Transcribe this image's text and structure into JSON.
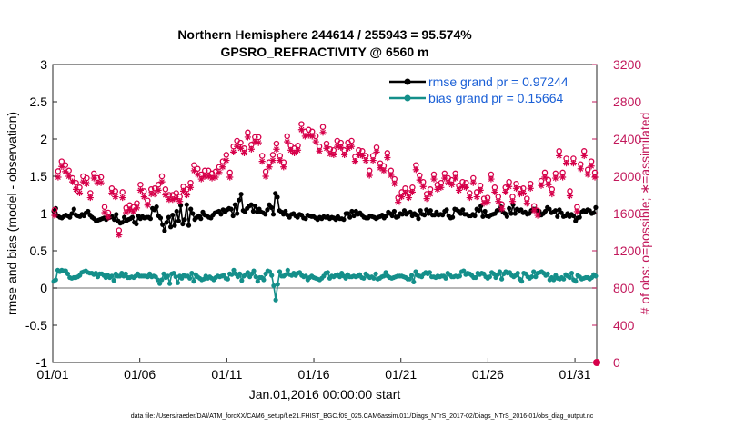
{
  "chart_data": {
    "type": "line",
    "title": "Northern Hemisphere 244614 / 255943 = 95.574%",
    "subtitle": "GPSRO_REFRACTIVITY @ 6560 m",
    "xlabel": "Jan.01,2016 00:00:00 start",
    "ylabel": "rmse and bias (model - observation)",
    "ylabel_right": "# of obs: o=possible; ∗=assimilated",
    "footer": "data file: /Users/raeder/DAI/ATM_forcXX/CAM6_setup/f.e21.FHIST_BGC.f09_025.CAM6assim.011/Diags_NTrS_2017-02/Diags_NTrS_2016-01/obs_diag_output.nc",
    "x_range": [
      0,
      31.25
    ],
    "x_ticks": [
      {
        "pos": 0,
        "label": "01/01"
      },
      {
        "pos": 5,
        "label": "01/06"
      },
      {
        "pos": 10,
        "label": "01/11"
      },
      {
        "pos": 15,
        "label": "01/16"
      },
      {
        "pos": 20,
        "label": "01/21"
      },
      {
        "pos": 25,
        "label": "01/26"
      },
      {
        "pos": 30,
        "label": "01/31"
      }
    ],
    "ylim": [
      -1,
      3
    ],
    "y_ticks": [
      "-1",
      "-0.5",
      "0",
      "0.5",
      "1",
      "1.5",
      "2",
      "2.5",
      "3"
    ],
    "ylim_right": [
      0,
      3200
    ],
    "y_ticks_right": [
      "0",
      "400",
      "800",
      "1200",
      "1600",
      "2000",
      "2400",
      "2800",
      "3200"
    ],
    "series": [
      {
        "name": "rmse grand pr = 0.97244",
        "axis": "left",
        "color": "#000000",
        "marker": "dot",
        "values": [
          1.03,
          1.07,
          0.97,
          0.95,
          0.94,
          0.96,
          0.98,
          0.97,
          0.95,
          1.0,
          1.06,
          0.98,
          0.97,
          0.96,
          0.99,
          0.97,
          1.01,
          1.03,
          0.98,
          0.95,
          0.93,
          0.9,
          0.91,
          0.92,
          0.93,
          0.94,
          0.92,
          0.94,
          0.95,
          0.96,
          0.92,
          0.99,
          0.9,
          0.87,
          0.88,
          0.95,
          0.9,
          0.92,
          0.93,
          0.95,
          0.88,
          0.86,
          0.97,
          0.93,
          0.96,
          0.94,
          0.95,
          0.95,
          0.93,
          1.07,
          1.05,
          1.09,
          0.97,
          0.94,
          0.85,
          0.77,
          0.88,
          0.95,
          0.82,
          0.98,
          0.84,
          1.03,
          0.9,
          1.11,
          0.86,
          0.92,
          1.12,
          0.84,
          1.06,
          1.0,
          0.92,
          0.95,
          0.97,
          0.93,
          1.02,
          0.98,
          0.97,
          0.95,
          0.94,
          0.98,
          1.01,
          1.02,
          1.03,
          0.99,
          1.05,
          1.02,
          1.05,
          1.07,
          1.06,
          0.97,
          1.12,
          1.0,
          1.18,
          1.26,
          1.04,
          1.02,
          1.07,
          1.1,
          1.12,
          1.03,
          1.1,
          1.02,
          1.06,
          1.02,
          1.01,
          0.99,
          1.05,
          1.12,
          1.08,
          0.99,
          1.27,
          1.22,
          1.04,
          1.02,
          0.99,
          1.03,
          0.98,
          0.95,
          0.99,
          1.0,
          0.97,
          0.95,
          0.99,
          0.98,
          0.94,
          0.93,
          0.98,
          0.97,
          0.96,
          0.96,
          0.94,
          0.92,
          0.95,
          0.93,
          0.96,
          0.95,
          0.96,
          0.93,
          0.95,
          0.94,
          0.92,
          0.96,
          0.93,
          0.93,
          0.92,
          1.0,
          1.0,
          0.95,
          1.03,
          0.97,
          1.03,
          0.99,
          1.01,
          0.98,
          0.95,
          0.94,
          0.94,
          0.97,
          0.96,
          0.95,
          0.93,
          0.95,
          0.96,
          0.98,
          0.94,
          0.97,
          1.02,
          1.0,
          0.97,
          1.03,
          0.95,
          0.96,
          1.0,
          0.99,
          1.04,
          0.99,
          1.01,
          1.02,
          0.97,
          1.0,
          0.98,
          0.93,
          1.04,
          0.99,
          0.98,
          1.05,
          1.0,
          1.04,
          0.98,
          0.98,
          1.02,
          0.98,
          0.99,
          0.98,
          1.03,
          1.05,
          0.97,
          0.94,
          0.95,
          1.06,
          1.05,
          1.03,
          1.0,
          1.05,
          0.99,
          0.99,
          0.97,
          0.97,
          0.99,
          0.97,
          1.06,
          1.04,
          1.1,
          0.96,
          1.03,
          0.97,
          0.96,
          0.98,
          0.99,
          1.0,
          1.04,
          1.05,
          1.09,
          1.02,
          1.0,
          0.96,
          1.07,
          1.0,
          1.12,
          1.0,
          1.06,
          1.04,
          1.05,
          1.01,
          1.02,
          0.99,
          1.0,
          1.04,
          1.06,
          1.06,
          1.04,
          1.03,
          0.98,
          1.0,
          1.03,
          1.08,
          1.06,
          1.01,
          1.02,
          1.04,
          0.96,
          1.05,
          1.01,
          0.96,
          0.97,
          1.0,
          0.96,
          0.99,
          0.97,
          0.9,
          0.94,
          0.95,
          1.02,
          1.04,
          1.02,
          1.05,
          1.04,
          1.0,
          1.01,
          1.08
        ]
      },
      {
        "name": "bias grand pr = 0.15664",
        "axis": "left",
        "color": "#148f8a",
        "marker": "dot",
        "values": [
          0.09,
          0.11,
          0.24,
          0.22,
          0.24,
          0.23,
          0.23,
          0.19,
          0.14,
          0.13,
          0.14,
          0.14,
          0.15,
          0.17,
          0.21,
          0.22,
          0.23,
          0.21,
          0.2,
          0.2,
          0.18,
          0.2,
          0.15,
          0.19,
          0.19,
          0.17,
          0.14,
          0.17,
          0.14,
          0.16,
          0.1,
          0.19,
          0.16,
          0.16,
          0.2,
          0.16,
          0.19,
          0.14,
          0.14,
          0.15,
          0.14,
          0.16,
          0.19,
          0.16,
          0.16,
          0.16,
          0.16,
          0.15,
          0.19,
          0.15,
          0.16,
          0.15,
          0.11,
          0.06,
          0.11,
          0.19,
          0.14,
          0.16,
          0.06,
          0.19,
          0.2,
          0.15,
          0.07,
          0.16,
          0.13,
          0.17,
          0.16,
          0.16,
          0.13,
          0.2,
          0.09,
          0.18,
          0.15,
          0.13,
          0.11,
          0.12,
          0.16,
          0.13,
          0.15,
          0.13,
          0.11,
          0.14,
          0.16,
          0.15,
          0.16,
          0.17,
          0.13,
          0.12,
          0.19,
          0.18,
          0.24,
          0.19,
          0.15,
          0.19,
          0.1,
          0.16,
          0.18,
          0.21,
          0.15,
          0.19,
          0.23,
          0.15,
          0.09,
          0.14,
          0.14,
          0.11,
          0.19,
          0.23,
          0.22,
          0.17,
          0.03,
          -0.16,
          0.05,
          0.22,
          0.16,
          0.16,
          0.18,
          0.24,
          0.18,
          0.17,
          0.2,
          0.17,
          0.2,
          0.21,
          0.17,
          0.15,
          0.16,
          0.11,
          0.14,
          0.16,
          0.14,
          0.13,
          0.12,
          0.11,
          0.13,
          0.16,
          0.2,
          0.21,
          0.13,
          0.16,
          0.15,
          0.17,
          0.18,
          0.15,
          0.2,
          0.16,
          0.13,
          0.18,
          0.15,
          0.15,
          0.16,
          0.15,
          0.16,
          0.18,
          0.14,
          0.13,
          0.19,
          0.16,
          0.14,
          0.15,
          0.13,
          0.19,
          0.12,
          0.13,
          0.15,
          0.16,
          0.21,
          0.16,
          0.14,
          0.13,
          0.14,
          0.15,
          0.16,
          0.16,
          0.16,
          0.15,
          0.14,
          0.12,
          0.12,
          0.17,
          0.08,
          0.22,
          0.17,
          0.16,
          0.15,
          0.19,
          0.21,
          0.19,
          0.21,
          0.15,
          0.15,
          0.14,
          0.16,
          0.15,
          0.16,
          0.16,
          0.13,
          0.2,
          0.18,
          0.15,
          0.15,
          0.16,
          0.15,
          0.16,
          0.22,
          0.23,
          0.18,
          0.2,
          0.19,
          0.17,
          0.14,
          0.14,
          0.2,
          0.18,
          0.2,
          0.19,
          0.15,
          0.13,
          0.15,
          0.21,
          0.19,
          0.14,
          0.18,
          0.22,
          0.12,
          0.19,
          0.22,
          0.2,
          0.21,
          0.17,
          0.15,
          0.17,
          0.2,
          0.12,
          0.09,
          0.2,
          0.19,
          0.15,
          0.13,
          0.15,
          0.22,
          0.15,
          0.2,
          0.21,
          0.22,
          0.2,
          0.17,
          0.19,
          0.11,
          0.14,
          0.11,
          0.17,
          0.13,
          0.12,
          0.14,
          0.12,
          0.18,
          0.16,
          0.14,
          0.2,
          0.11,
          0.09,
          0.17,
          0.15,
          0.12,
          0.13,
          0.14,
          0.14,
          0.12,
          0.14,
          0.18,
          0.16
        ]
      },
      {
        "name": "possible obs",
        "axis": "right",
        "color": "#d6004a",
        "marker": "o",
        "values": [
          1640,
          2055,
          2160,
          2120,
          2060,
          1980,
          1930,
          1880,
          2000,
          1980,
          1820,
          2030,
          1980,
          1990,
          1670,
          1610,
          1870,
          1840,
          1420,
          1830,
          1660,
          1690,
          1670,
          1710,
          1910,
          1840,
          1740,
          1860,
          1870,
          1910,
          2000,
          1860,
          1800,
          1800,
          1820,
          1780,
          1890,
          1860,
          1930,
          2120,
          2080,
          2020,
          2060,
          2060,
          2030,
          2050,
          2100,
          2160,
          2230,
          2040,
          2320,
          2380,
          2360,
          2300,
          2470,
          2340,
          2420,
          2420,
          2220,
          2050,
          2150,
          2230,
          2350,
          2220,
          2150,
          2430,
          2330,
          2300,
          2330,
          2560,
          2480,
          2500,
          2480,
          2430,
          2320,
          2530,
          2350,
          2290,
          2280,
          2380,
          2360,
          2280,
          2360,
          2380,
          2210,
          2280,
          2270,
          2220,
          2060,
          2220,
          2310,
          2140,
          2110,
          2250,
          2060,
          1970,
          1770,
          1830,
          1870,
          1820,
          1880,
          2120,
          2010,
          1940,
          1810,
          1860,
          2020,
          1910,
          1930,
          2030,
          1980,
          1960,
          2030,
          1900,
          1940,
          1930,
          1820,
          1980,
          1830,
          1900,
          1760,
          1770,
          2020,
          1880,
          1780,
          1700,
          1880,
          1940,
          1780,
          1920,
          1860,
          1870,
          1760,
          1920,
          1680,
          1630,
          1950,
          2040,
          1960,
          1860,
          2030,
          2270,
          2040,
          2190,
          1840,
          2190,
          1670,
          2130,
          2270,
          2070,
          2160,
          2040
        ]
      },
      {
        "name": "assimilated obs",
        "axis": "right",
        "color": "#d6004a",
        "marker": "star",
        "values": [
          1580,
          1990,
          2105,
          2050,
          2000,
          1940,
          1860,
          1820,
          1940,
          1920,
          1770,
          1980,
          1930,
          1930,
          1610,
          1560,
          1820,
          1780,
          1370,
          1770,
          1610,
          1640,
          1620,
          1660,
          1850,
          1780,
          1690,
          1810,
          1810,
          1850,
          1940,
          1800,
          1750,
          1750,
          1760,
          1730,
          1840,
          1800,
          1880,
          2060,
          2020,
          1970,
          2000,
          2000,
          1980,
          1990,
          2040,
          2100,
          2170,
          1990,
          2260,
          2320,
          2300,
          2250,
          2420,
          2290,
          2370,
          2360,
          2160,
          2000,
          2100,
          2170,
          2290,
          2170,
          2100,
          2370,
          2280,
          2250,
          2280,
          2500,
          2430,
          2440,
          2430,
          2370,
          2270,
          2470,
          2300,
          2240,
          2230,
          2320,
          2310,
          2230,
          2300,
          2320,
          2160,
          2230,
          2220,
          2170,
          2010,
          2170,
          2260,
          2090,
          2060,
          2200,
          2010,
          1920,
          1720,
          1780,
          1820,
          1770,
          1830,
          2070,
          1960,
          1890,
          1760,
          1810,
          1970,
          1860,
          1880,
          1980,
          1930,
          1910,
          1980,
          1850,
          1890,
          1880,
          1770,
          1930,
          1780,
          1850,
          1710,
          1720,
          1970,
          1830,
          1730,
          1650,
          1830,
          1890,
          1730,
          1870,
          1810,
          1820,
          1710,
          1870,
          1630,
          1580,
          1900,
          1990,
          1910,
          1810,
          1980,
          2220,
          1990,
          2140,
          1790,
          2140,
          1620,
          2080,
          2220,
          2020,
          2110,
          1990
        ]
      }
    ]
  }
}
